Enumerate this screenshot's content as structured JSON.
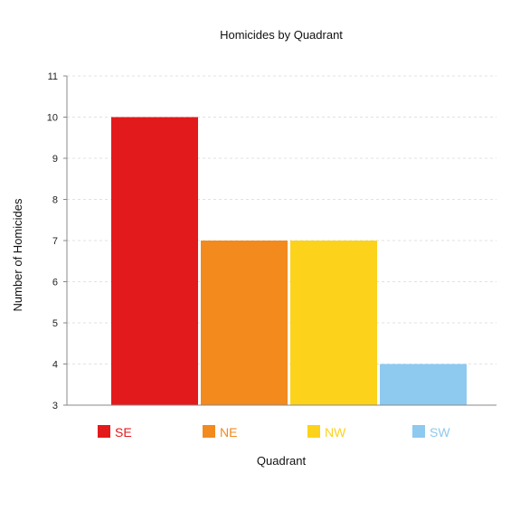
{
  "chart_data": {
    "type": "bar",
    "title": "Homicides by Quadrant",
    "xlabel": "Quadrant",
    "ylabel": "Number of Homicides",
    "categories": [
      "SE",
      "NE",
      "NW",
      "SW"
    ],
    "values": [
      10,
      7,
      7,
      4
    ],
    "colors": [
      "#e31a1c",
      "#f28a1e",
      "#fcd21b",
      "#8ec9ef"
    ],
    "ylim": [
      3,
      11
    ],
    "yticks": [
      3,
      4,
      5,
      6,
      7,
      8,
      9,
      10,
      11
    ],
    "grid": true,
    "legend": "bottom"
  }
}
